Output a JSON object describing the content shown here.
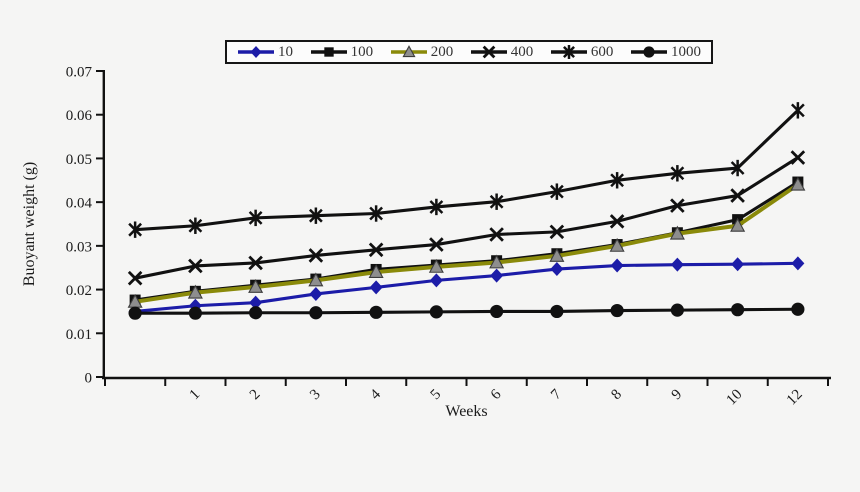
{
  "page": {
    "background": "#f5f5f4"
  },
  "chart_data": {
    "type": "line",
    "title": "",
    "xlabel": "Weeks",
    "ylabel": "Buoyant weight (g)",
    "ylim": [
      0,
      0.07
    ],
    "ytick_step": 0.01,
    "ytick_labels": [
      "0",
      "0.01",
      "0.02",
      "0.03",
      "0.04",
      "0.05",
      "0.06",
      "0.07"
    ],
    "categories": [
      "",
      "1",
      "2",
      "3",
      "4",
      "5",
      "6",
      "7",
      "8",
      "9",
      "10",
      "12"
    ],
    "grid": false,
    "legend_position": "top-center",
    "axis_color": "#111111",
    "series": [
      {
        "name": "10",
        "marker": "diamond",
        "line_color": "#1c1ca8",
        "marker_color": "#1c1ca8",
        "values": [
          0.015,
          0.0163,
          0.017,
          0.019,
          0.0205,
          0.0221,
          0.0232,
          0.0247,
          0.0255,
          0.0257,
          0.0258,
          0.026
        ]
      },
      {
        "name": "100",
        "marker": "square",
        "line_color": "#111111",
        "marker_color": "#111111",
        "values": [
          0.0176,
          0.0196,
          0.021,
          0.0224,
          0.0246,
          0.0256,
          0.0266,
          0.0282,
          0.0303,
          0.033,
          0.036,
          0.0446
        ]
      },
      {
        "name": "200",
        "marker": "triangle",
        "line_color": "#8a8a0a",
        "marker_color": "#8e8e8e",
        "values": [
          0.0172,
          0.0193,
          0.0206,
          0.0221,
          0.024,
          0.0252,
          0.0262,
          0.0277,
          0.03,
          0.0328,
          0.0346,
          0.044
        ]
      },
      {
        "name": "400",
        "marker": "x",
        "line_color": "#111111",
        "marker_color": "#111111",
        "values": [
          0.0226,
          0.0254,
          0.0261,
          0.0278,
          0.0291,
          0.0303,
          0.0326,
          0.0332,
          0.0356,
          0.0392,
          0.0415,
          0.0502
        ]
      },
      {
        "name": "600",
        "marker": "asterisk",
        "line_color": "#111111",
        "marker_color": "#111111",
        "values": [
          0.0337,
          0.0346,
          0.0364,
          0.0369,
          0.0374,
          0.0389,
          0.0401,
          0.0424,
          0.045,
          0.0466,
          0.0478,
          0.061
        ]
      },
      {
        "name": "1000",
        "marker": "circle",
        "line_color": "#111111",
        "marker_color": "#111111",
        "values": [
          0.0146,
          0.0146,
          0.0147,
          0.0147,
          0.0148,
          0.0149,
          0.015,
          0.015,
          0.0152,
          0.0153,
          0.0154,
          0.0155
        ]
      }
    ]
  }
}
